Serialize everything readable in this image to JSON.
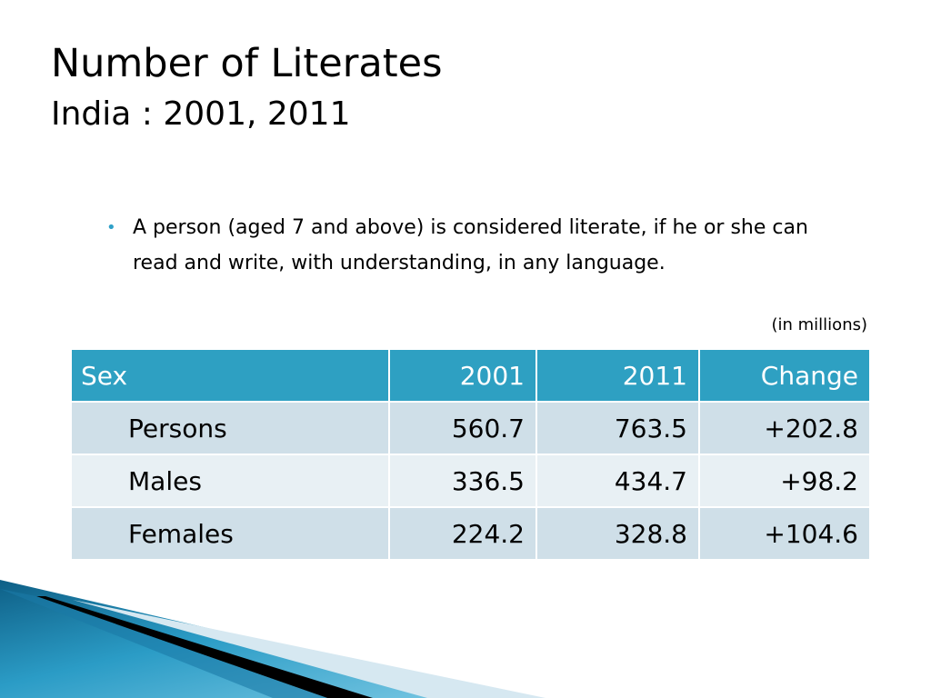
{
  "slide": {
    "title": "Number of Literates",
    "subtitle": "India : 2001, 2011",
    "bullet": "A person (aged 7 and above) is considered literate, if he or she can read and write, with  understanding, in any language.",
    "units": "(in millions)"
  },
  "table": {
    "headers": [
      "Sex",
      "2001",
      "2011",
      "Change"
    ],
    "rows": [
      [
        "Persons",
        "560.7",
        "763.5",
        "+202.8"
      ],
      [
        "Males",
        "336.5",
        "434.7",
        "+98.2"
      ],
      [
        "Females",
        "224.2",
        "328.8",
        "+104.6"
      ]
    ]
  },
  "colors": {
    "header_bg": "#2ea0c2",
    "row_odd": "#cfdfe8",
    "row_even": "#e8f0f4",
    "bullet": "#2fa0c8"
  }
}
